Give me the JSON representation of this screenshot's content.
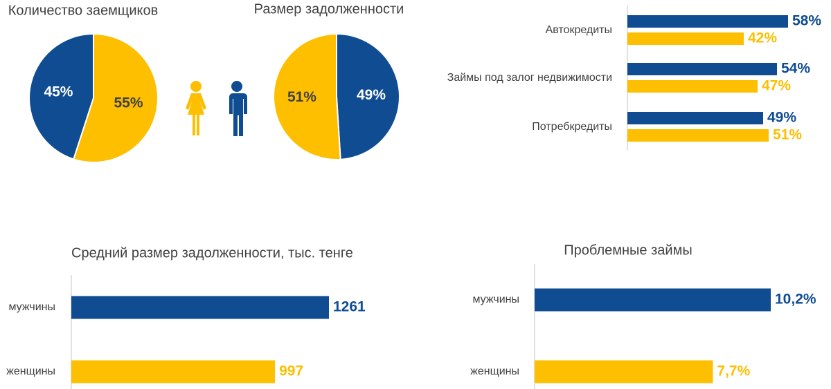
{
  "chart_data": [
    {
      "type": "pie",
      "title": "Количество заемщиков",
      "values": [
        45,
        55
      ],
      "value_labels": [
        "45%",
        "55%"
      ],
      "colors": [
        "#0f4c92",
        "#fdbf00"
      ],
      "direction": "counterclockwise"
    },
    {
      "type": "pie",
      "title": "Размер задолженности",
      "values": [
        49,
        51
      ],
      "value_labels": [
        "49%",
        "51%"
      ],
      "colors": [
        "#0f4c92",
        "#fdbf00"
      ],
      "direction": "clockwise"
    },
    {
      "type": "bar",
      "orientation": "horizontal",
      "categories": [
        "Автокредиты",
        "Займы под залог недвижимости",
        "Потребкредиты"
      ],
      "series": [
        {
          "color": "#0f4c92",
          "values": [
            58,
            54,
            49
          ],
          "value_labels": [
            "58%",
            "54%",
            "49%"
          ]
        },
        {
          "color": "#fdbf00",
          "values": [
            42,
            47,
            51
          ],
          "value_labels": [
            "42%",
            "47%",
            "51%"
          ]
        }
      ]
    },
    {
      "type": "bar",
      "orientation": "horizontal",
      "title": "Средний размер задолженности, тыс. тенге",
      "categories": [
        "мужчины",
        "женщины"
      ],
      "values": [
        1261,
        997
      ],
      "colors": [
        "#0f4c92",
        "#fdbf00"
      ]
    },
    {
      "type": "bar",
      "orientation": "horizontal",
      "title": "Проблемные займы",
      "categories": [
        "мужчины",
        "женщины"
      ],
      "values": [
        10.2,
        7.7
      ],
      "value_labels": [
        "10,2%",
        "7,7%"
      ],
      "colors": [
        "#0f4c92",
        "#fdbf00"
      ]
    }
  ]
}
